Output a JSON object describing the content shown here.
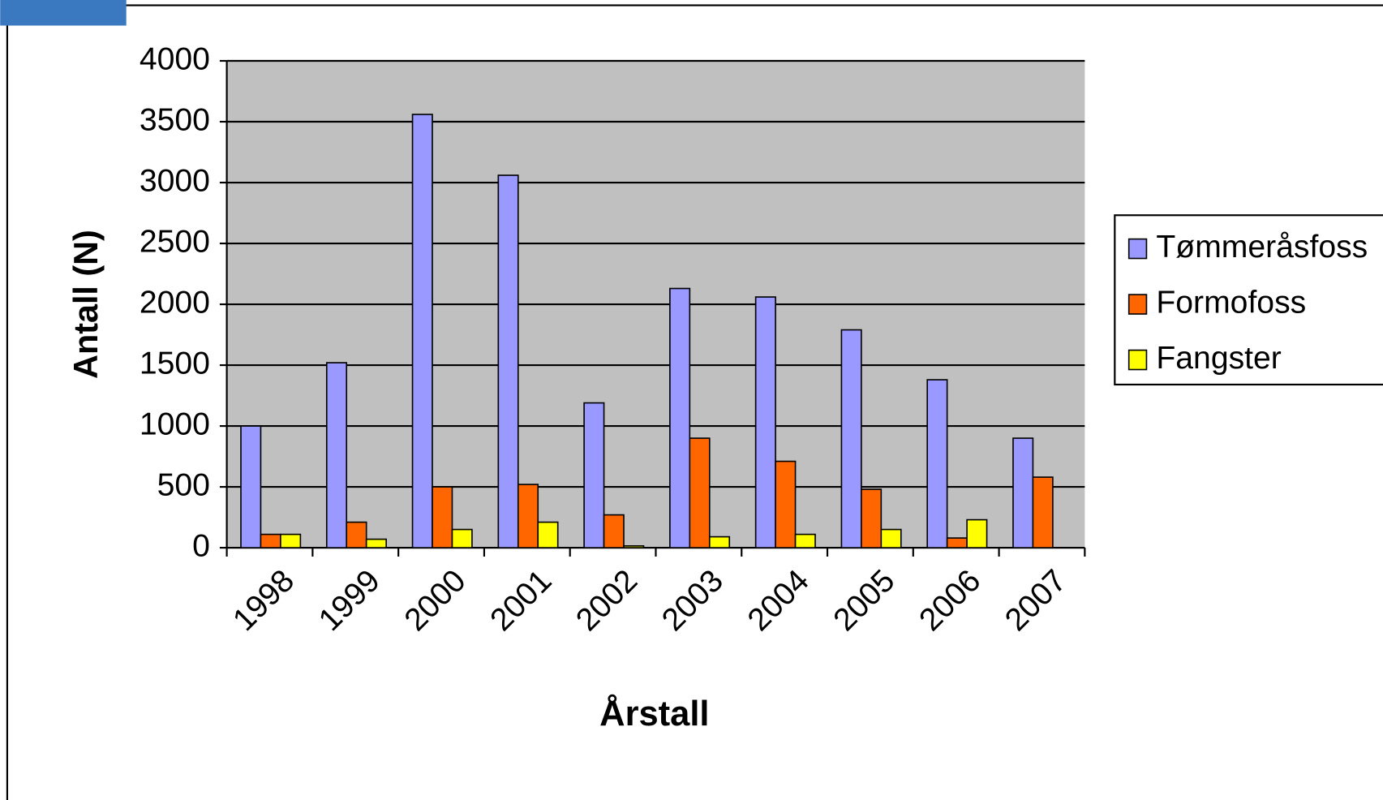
{
  "chart_data": {
    "type": "bar",
    "x_label": "Årstall",
    "y_label": "Antall (N)",
    "categories": [
      "1998",
      "1999",
      "2000",
      "2001",
      "2002",
      "2003",
      "2004",
      "2005",
      "2006",
      "2007"
    ],
    "series": [
      {
        "name": "Tømmeråsfoss",
        "color": "#9999ff",
        "values": [
          1000,
          1520,
          3560,
          3060,
          1190,
          2130,
          2060,
          1790,
          1380,
          900
        ]
      },
      {
        "name": "Formofoss",
        "color": "#ff6600",
        "values": [
          110,
          210,
          500,
          520,
          270,
          900,
          710,
          480,
          80,
          580
        ]
      },
      {
        "name": "Fangster",
        "color": "#ffff00",
        "values": [
          110,
          70,
          150,
          210,
          15,
          90,
          110,
          150,
          230,
          null
        ]
      }
    ],
    "ylim": [
      0,
      4000
    ],
    "yticks": [
      0,
      500,
      1000,
      1500,
      2000,
      2500,
      3000,
      3500,
      4000
    ],
    "grid": true,
    "plot_background": "#c0c0c0",
    "legend": "right"
  }
}
